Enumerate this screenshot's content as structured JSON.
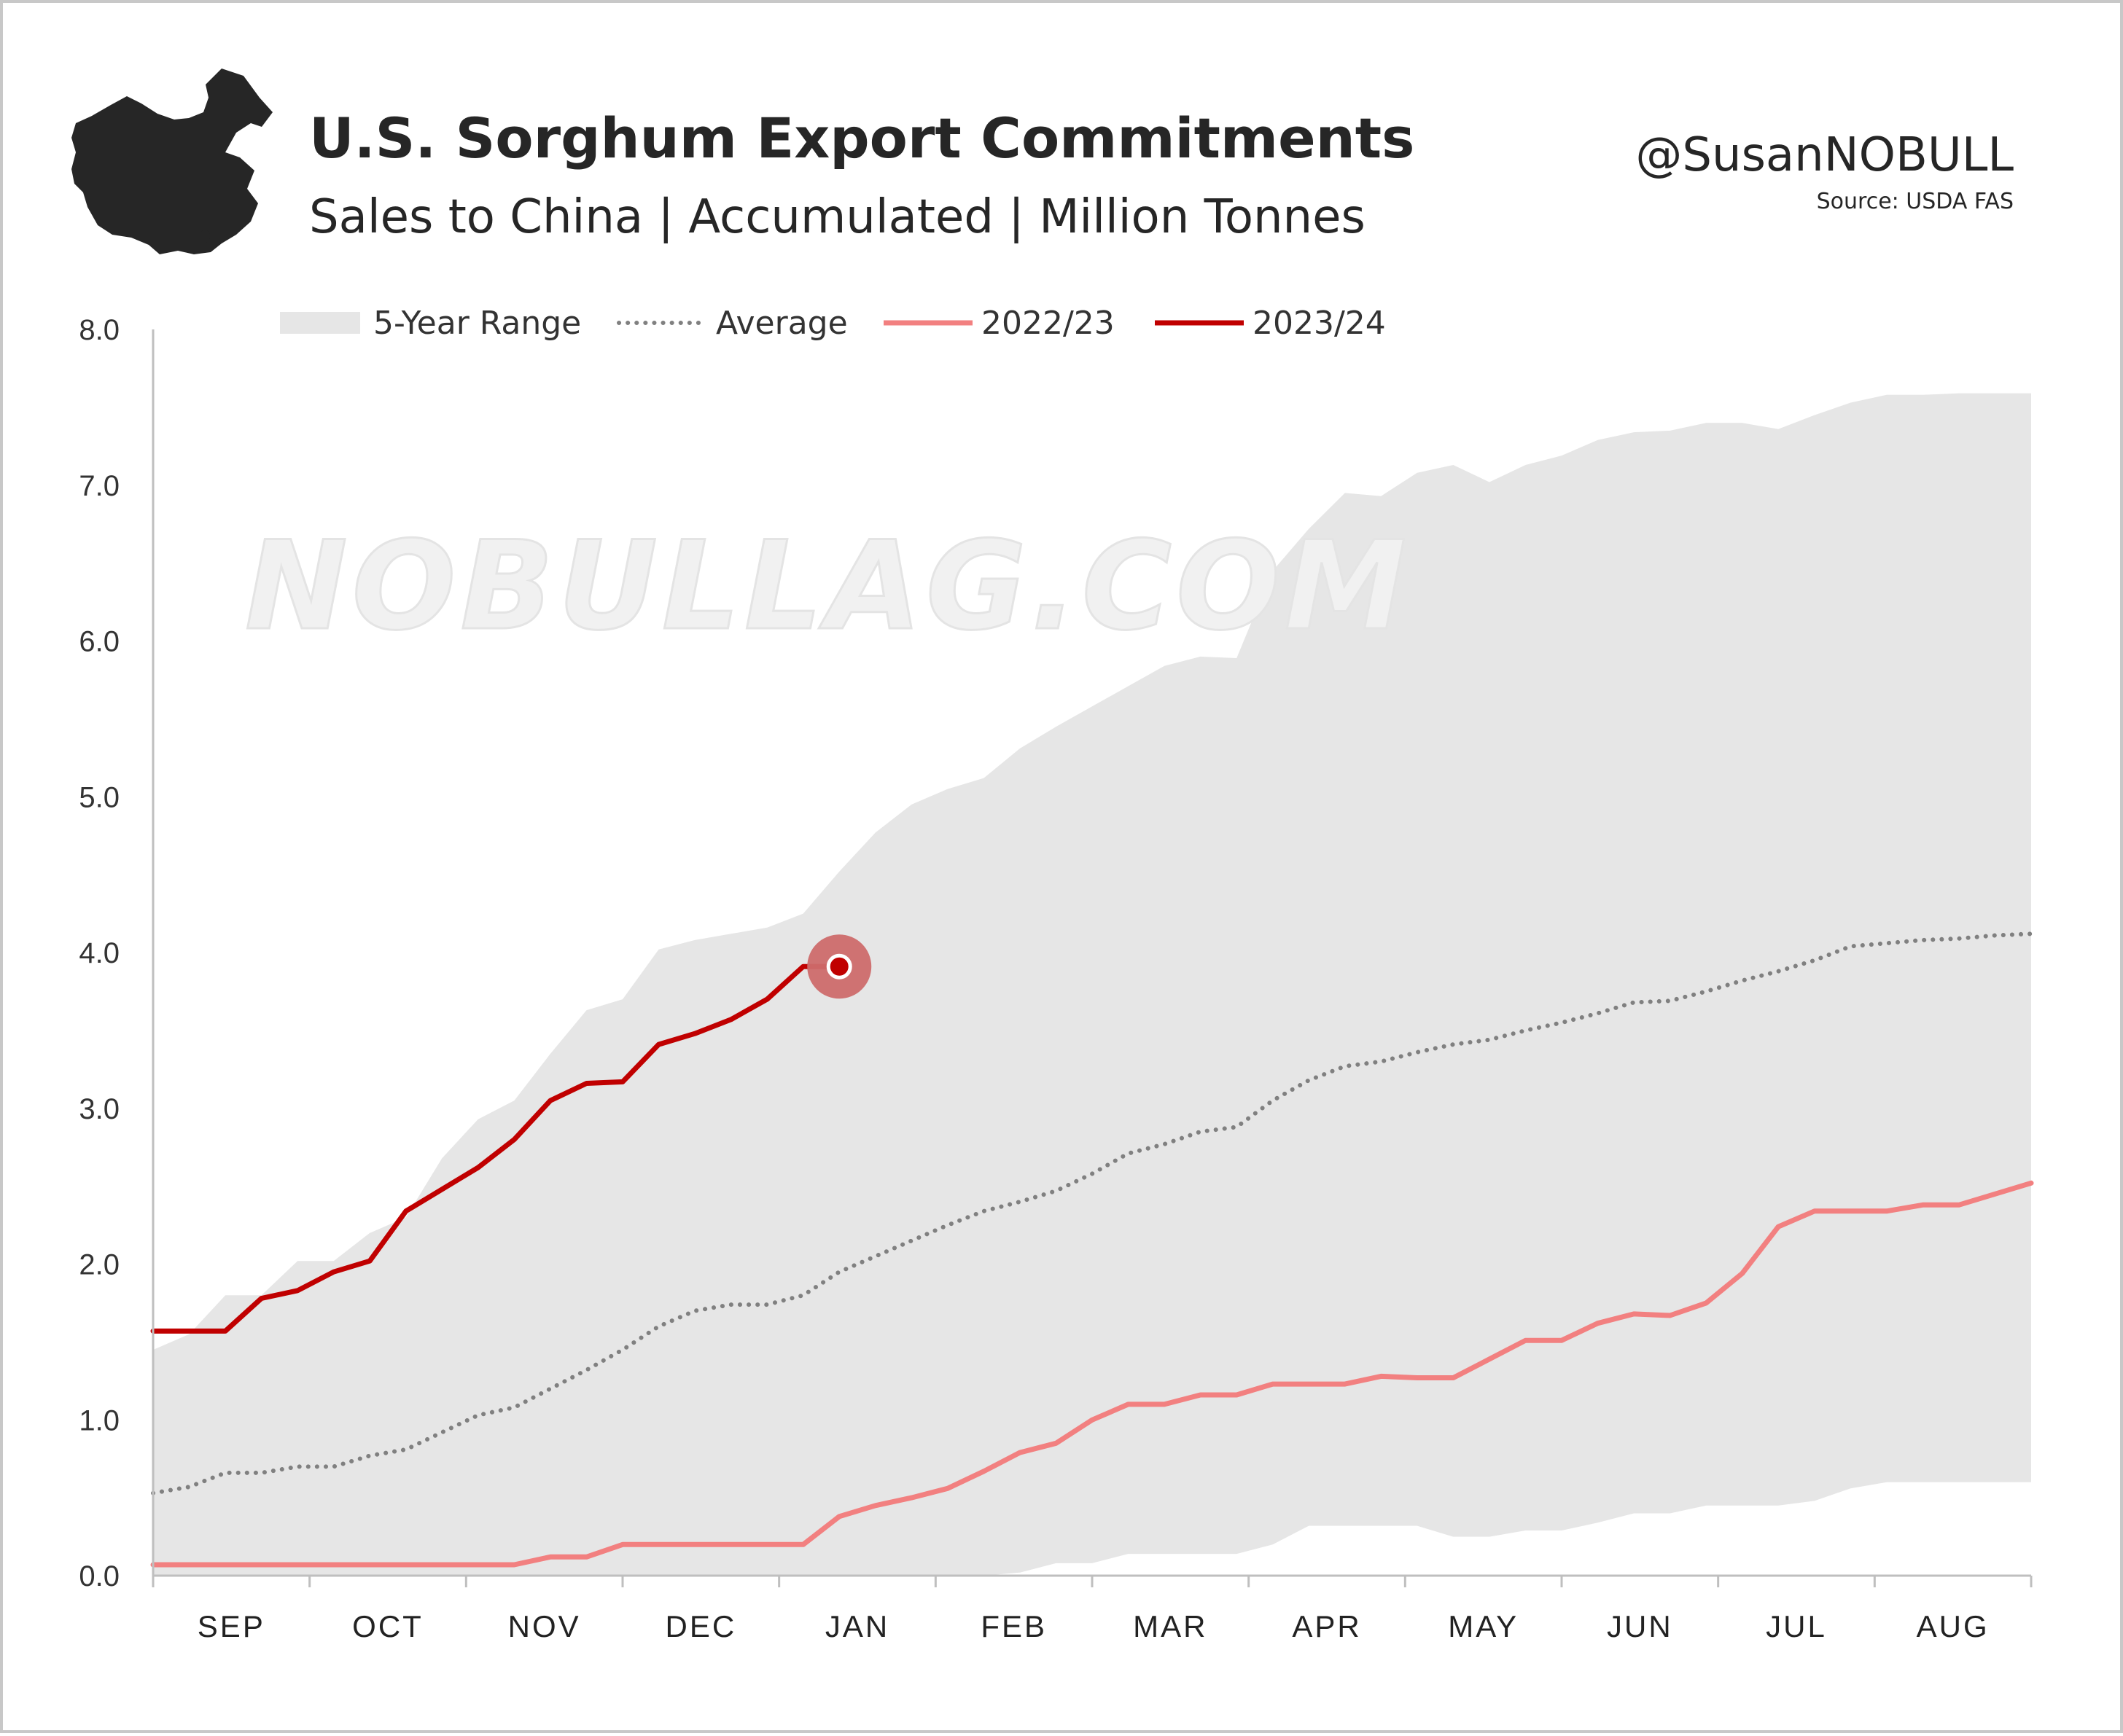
{
  "header": {
    "title": "U.S. Sorghum Export Commitments",
    "subtitle": "Sales to China | Accumulated  |  Million Tonnes",
    "handle": "@SusanNOBULL",
    "source": "Source: USDA FAS",
    "watermark": "NOBULLAG.COM",
    "logo_icon": "china-map-icon"
  },
  "colors": {
    "range": "#e6e6e6",
    "average": "#808080",
    "series_2022_23": "#f28080",
    "series_2023_24": "#c00000",
    "marker_halo": "#cd6b6b",
    "axis": "#bfbfbf",
    "text": "#262626"
  },
  "chart_data": {
    "type": "area",
    "title": "U.S. Sorghum Export Commitments",
    "subtitle": "Sales to China | Accumulated  |  Million Tonnes",
    "xlabel": "",
    "ylabel": "",
    "categories": [
      "SEP",
      "OCT",
      "NOV",
      "DEC",
      "JAN",
      "FEB",
      "MAR",
      "APR",
      "MAY",
      "JUN",
      "JUL",
      "AUG"
    ],
    "x_unit": "week of marketing year",
    "x_range": [
      1,
      53
    ],
    "ylim": [
      0,
      8
    ],
    "yticks": [
      "0.0",
      "1.0",
      "2.0",
      "3.0",
      "4.0",
      "5.0",
      "6.0",
      "7.0",
      "8.0"
    ],
    "grid": false,
    "legend_position": "top",
    "legend": [
      "5-Year Range",
      "Average",
      "2022/23",
      "2023/24"
    ],
    "band": {
      "name": "5-Year Range",
      "x": [
        1,
        2,
        3,
        4,
        5,
        6,
        7,
        8,
        9,
        10,
        11,
        12,
        13,
        14,
        15,
        16,
        17,
        18,
        19,
        20,
        21,
        22,
        23,
        24,
        25,
        26,
        27,
        28,
        29,
        30,
        31,
        32,
        33,
        34,
        35,
        36,
        37,
        38,
        39,
        40,
        41,
        42,
        43,
        44,
        45,
        46,
        47,
        48,
        49,
        50,
        51,
        52,
        53
      ],
      "upper": [
        1.45,
        1.55,
        1.8,
        1.8,
        2.02,
        2.02,
        2.2,
        2.3,
        2.68,
        2.93,
        3.05,
        3.35,
        3.63,
        3.7,
        4.02,
        4.08,
        4.12,
        4.16,
        4.25,
        4.52,
        4.77,
        4.95,
        5.05,
        5.12,
        5.31,
        5.45,
        5.58,
        5.71,
        5.84,
        5.9,
        5.89,
        6.45,
        6.72,
        6.95,
        6.93,
        7.08,
        7.13,
        7.02,
        7.13,
        7.19,
        7.29,
        7.34,
        7.35,
        7.4,
        7.4,
        7.36,
        7.45,
        7.53,
        7.58,
        7.58,
        7.59,
        7.59,
        7.59
      ],
      "lower": [
        0,
        0,
        0,
        0,
        0,
        0,
        0,
        0,
        0,
        0,
        0,
        0,
        0,
        0,
        0,
        0,
        0,
        0,
        0,
        0,
        0,
        0,
        0,
        0,
        0.02,
        0.08,
        0.08,
        0.14,
        0.14,
        0.14,
        0.14,
        0.2,
        0.32,
        0.32,
        0.32,
        0.32,
        0.25,
        0.25,
        0.29,
        0.29,
        0.34,
        0.4,
        0.4,
        0.45,
        0.45,
        0.45,
        0.48,
        0.56,
        0.6,
        0.6,
        0.6,
        0.6,
        0.6
      ]
    },
    "series": [
      {
        "name": "Average",
        "style": "dotted",
        "x": [
          1,
          2,
          3,
          4,
          5,
          6,
          7,
          8,
          9,
          10,
          11,
          12,
          13,
          14,
          15,
          16,
          17,
          18,
          19,
          20,
          21,
          22,
          23,
          24,
          25,
          26,
          27,
          28,
          29,
          30,
          31,
          32,
          33,
          34,
          35,
          36,
          37,
          38,
          39,
          40,
          41,
          42,
          43,
          44,
          45,
          46,
          47,
          48,
          49,
          50,
          51,
          52,
          53
        ],
        "values": [
          0.53,
          0.57,
          0.66,
          0.66,
          0.7,
          0.7,
          0.77,
          0.81,
          0.92,
          1.03,
          1.08,
          1.2,
          1.32,
          1.45,
          1.6,
          1.7,
          1.74,
          1.74,
          1.8,
          1.95,
          2.05,
          2.15,
          2.25,
          2.34,
          2.4,
          2.47,
          2.58,
          2.71,
          2.77,
          2.85,
          2.88,
          3.05,
          3.18,
          3.27,
          3.3,
          3.36,
          3.41,
          3.44,
          3.5,
          3.55,
          3.61,
          3.68,
          3.69,
          3.75,
          3.82,
          3.88,
          3.95,
          4.04,
          4.06,
          4.08,
          4.09,
          4.11,
          4.12
        ]
      },
      {
        "name": "2022/23",
        "style": "solid",
        "x": [
          1,
          2,
          3,
          4,
          5,
          6,
          7,
          8,
          9,
          10,
          11,
          12,
          13,
          14,
          15,
          16,
          17,
          18,
          19,
          20,
          21,
          22,
          23,
          24,
          25,
          26,
          27,
          28,
          29,
          30,
          31,
          32,
          33,
          34,
          35,
          36,
          37,
          38,
          39,
          40,
          41,
          42,
          43,
          44,
          45,
          46,
          47,
          48,
          49,
          50,
          51,
          52,
          53
        ],
        "values": [
          0.07,
          0.07,
          0.07,
          0.07,
          0.07,
          0.07,
          0.07,
          0.07,
          0.07,
          0.07,
          0.07,
          0.12,
          0.12,
          0.2,
          0.2,
          0.2,
          0.2,
          0.2,
          0.2,
          0.38,
          0.45,
          0.5,
          0.56,
          0.67,
          0.79,
          0.85,
          1.0,
          1.1,
          1.1,
          1.16,
          1.16,
          1.23,
          1.23,
          1.23,
          1.28,
          1.27,
          1.27,
          1.39,
          1.51,
          1.51,
          1.62,
          1.68,
          1.67,
          1.75,
          1.94,
          2.24,
          2.34,
          2.34,
          2.34,
          2.38,
          2.38,
          2.45,
          2.52
        ]
      },
      {
        "name": "2023/24",
        "style": "solid",
        "x": [
          1,
          2,
          3,
          4,
          5,
          6,
          7,
          8,
          9,
          10,
          11,
          12,
          13,
          14,
          15,
          16,
          17,
          18,
          19,
          20
        ],
        "values": [
          1.57,
          1.57,
          1.57,
          1.78,
          1.83,
          1.95,
          2.02,
          2.34,
          2.48,
          2.62,
          2.8,
          3.05,
          3.16,
          3.17,
          3.41,
          3.48,
          3.57,
          3.7,
          3.91,
          3.91
        ]
      }
    ],
    "highlight_point": {
      "series": "2023/24",
      "x": 20,
      "y": 3.91
    }
  }
}
